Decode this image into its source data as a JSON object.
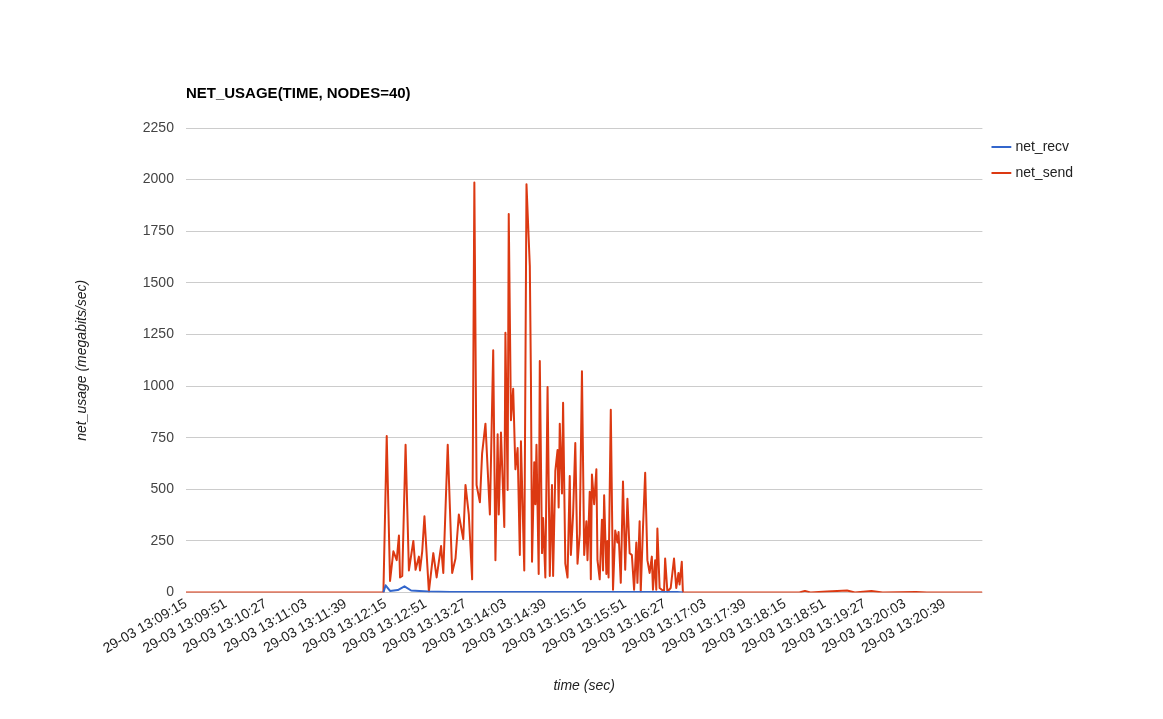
{
  "chart_data": {
    "type": "line",
    "title": "NET_USAGE(TIME, NODES=40)",
    "xlabel": "time (sec)",
    "ylabel": "net_usage (megabits/sec)",
    "xlim": [
      "--03-29T13:09:15",
      "--03-29T13:21:13"
    ],
    "xticks": [
      {
        "value": "--03-29T13:09:15",
        "label": "29-03 13:09:15"
      },
      {
        "value": "--03-29T13:09:51",
        "label": "29-03 13:09:51"
      },
      {
        "value": "--03-29T13:10:27",
        "label": "29-03 13:10:27"
      },
      {
        "value": "--03-29T13:11:03",
        "label": "29-03 13:11:03"
      },
      {
        "value": "--03-29T13:11:39",
        "label": "29-03 13:11:39"
      },
      {
        "value": "--03-29T13:12:15",
        "label": "29-03 13:12:15"
      },
      {
        "value": "--03-29T13:12:51",
        "label": "29-03 13:12:51"
      },
      {
        "value": "--03-29T13:13:27",
        "label": "29-03 13:13:27"
      },
      {
        "value": "--03-29T13:14:03",
        "label": "29-03 13:14:03"
      },
      {
        "value": "--03-29T13:14:39",
        "label": "29-03 13:14:39"
      },
      {
        "value": "--03-29T13:15:15",
        "label": "29-03 13:15:15"
      },
      {
        "value": "--03-29T13:15:51",
        "label": "29-03 13:15:51"
      },
      {
        "value": "--03-29T13:16:27",
        "label": "29-03 13:16:27"
      },
      {
        "value": "--03-29T13:17:03",
        "label": "29-03 13:17:03"
      },
      {
        "value": "--03-29T13:17:39",
        "label": "29-03 13:17:39"
      },
      {
        "value": "--03-29T13:18:15",
        "label": "29-03 13:18:15"
      },
      {
        "value": "--03-29T13:18:51",
        "label": "29-03 13:18:51"
      },
      {
        "value": "--03-29T13:19:27",
        "label": "29-03 13:19:27"
      },
      {
        "value": "--03-29T13:20:03",
        "label": "29-03 13:20:03"
      },
      {
        "value": "--03-29T13:20:39",
        "label": "29-03 13:20:39"
      }
    ],
    "ylim": [
      0,
      2250
    ],
    "yticks": [
      0,
      250,
      500,
      750,
      1000,
      1250,
      1500,
      1750,
      2000,
      2250
    ],
    "grid": "y",
    "legend": "top right",
    "marker": "none",
    "line_style": "solid",
    "series": [
      {
        "name": "net_recv",
        "color": "#3366cc",
        "x": [
          "--03-29T13:12:13",
          "--03-29T13:12:15",
          "--03-29T13:12:19",
          "--03-29T13:12:26",
          "--03-29T13:12:32",
          "--03-29T13:12:38",
          "--03-29T13:12:53",
          "--03-29T13:13:13",
          "--03-29T13:16:38",
          "--03-29T13:16:43"
        ],
        "values": [
          0,
          35,
          8,
          12,
          30,
          10,
          5,
          3,
          3,
          0
        ]
      },
      {
        "name": "net_send",
        "color": "#dc3912",
        "x": [
          "--03-29T13:09:15",
          "--03-29T13:12:13",
          "--03-29T13:12:16",
          "--03-29T13:12:19",
          "--03-29T13:12:22",
          "--03-29T13:12:25",
          "--03-29T13:12:27",
          "--03-29T13:12:28",
          "--03-29T13:12:30",
          "--03-29T13:12:33",
          "--03-29T13:12:36",
          "--03-29T13:12:40",
          "--03-29T13:12:42",
          "--03-29T13:12:45",
          "--03-29T13:12:46",
          "--03-29T13:12:48",
          "--03-29T13:12:50",
          "--03-29T13:12:54",
          "--03-29T13:12:58",
          "--03-29T13:13:01",
          "--03-29T13:13:05",
          "--03-29T13:13:07",
          "--03-29T13:13:11",
          "--03-29T13:13:15",
          "--03-29T13:13:18",
          "--03-29T13:13:21",
          "--03-29T13:13:25",
          "--03-29T13:13:27",
          "--03-29T13:13:30",
          "--03-29T13:13:33",
          "--03-29T13:13:35",
          "--03-29T13:13:37",
          "--03-29T13:13:40",
          "--03-29T13:13:42",
          "--03-29T13:13:45",
          "--03-29T13:13:47",
          "--03-29T13:13:49",
          "--03-29T13:13:52",
          "--03-29T13:13:54",
          "--03-29T13:13:56",
          "--03-29T13:13:57",
          "--03-29T13:13:59",
          "--03-29T13:14:02",
          "--03-29T13:14:03",
          "--03-29T13:14:05",
          "--03-29T13:14:06",
          "--03-29T13:14:08",
          "--03-29T13:14:10",
          "--03-29T13:14:12",
          "--03-29T13:14:14",
          "--03-29T13:14:16",
          "--03-29T13:14:17",
          "--03-29T13:14:20",
          "--03-29T13:14:22",
          "--03-29T13:14:25",
          "--03-29T13:14:26",
          "--03-29T13:14:27",
          "--03-29T13:14:29",
          "--03-29T13:14:30",
          "--03-29T13:14:31",
          "--03-29T13:14:33",
          "--03-29T13:14:34",
          "--03-29T13:14:36",
          "--03-29T13:14:37",
          "--03-29T13:14:39",
          "--03-29T13:14:41",
          "--03-29T13:14:43",
          "--03-29T13:14:45",
          "--03-29T13:14:46",
          "--03-29T13:14:48",
          "--03-29T13:14:50",
          "--03-29T13:14:51",
          "--03-29T13:14:52",
          "--03-29T13:14:54",
          "--03-29T13:14:55",
          "--03-29T13:14:57",
          "--03-29T13:14:59",
          "--03-29T13:15:01",
          "--03-29T13:15:02",
          "--03-29T13:15:04",
          "--03-29T13:15:06",
          "--03-29T13:15:08",
          "--03-29T13:15:10",
          "--03-29T13:15:12",
          "--03-29T13:15:14",
          "--03-29T13:15:16",
          "--03-29T13:15:17",
          "--03-29T13:15:19",
          "--03-29T13:15:20",
          "--03-29T13:15:21",
          "--03-29T13:15:23",
          "--03-29T13:15:25",
          "--03-29T13:15:26",
          "--03-29T13:15:28",
          "--03-29T13:15:30",
          "--03-29T13:15:31",
          "--03-29T13:15:32",
          "--03-29T13:15:34",
          "--03-29T13:15:35",
          "--03-29T13:15:36",
          "--03-29T13:15:38",
          "--03-29T13:15:40",
          "--03-29T13:15:42",
          "--03-29T13:15:44",
          "--03-29T13:15:45",
          "--03-29T13:15:47",
          "--03-29T13:15:49",
          "--03-29T13:15:51",
          "--03-29T13:15:53",
          "--03-29T13:15:55",
          "--03-29T13:15:57",
          "--03-29T13:15:59",
          "--03-29T13:16:01",
          "--03-29T13:16:02",
          "--03-29T13:16:04",
          "--03-29T13:16:05",
          "--03-29T13:16:07",
          "--03-29T13:16:09",
          "--03-29T13:16:11",
          "--03-29T13:16:13",
          "--03-29T13:16:15",
          "--03-29T13:16:16",
          "--03-29T13:16:18",
          "--03-29T13:16:19",
          "--03-29T13:16:20",
          "--03-29T13:16:22",
          "--03-29T13:16:26",
          "--03-29T13:16:27",
          "--03-29T13:16:29",
          "--03-29T13:16:32",
          "--03-29T13:16:35",
          "--03-29T13:16:37",
          "--03-29T13:16:39",
          "--03-29T13:16:40",
          "--03-29T13:16:42",
          "--03-29T13:16:43",
          "--03-29T13:18:28",
          "--03-29T13:18:33",
          "--03-29T13:18:38",
          "--03-29T13:18:53",
          "--03-29T13:19:11",
          "--03-29T13:19:18",
          "--03-29T13:19:33",
          "--03-29T13:19:43",
          "--03-29T13:20:13",
          "--03-29T13:20:23",
          "--03-29T13:21:13"
        ],
        "values": [
          0,
          0,
          758,
          56,
          200,
          157,
          276,
          73,
          80,
          716,
          107,
          250,
          110,
          174,
          107,
          200,
          369,
          5,
          191,
          73,
          225,
          95,
          716,
          95,
          165,
          378,
          259,
          521,
          378,
          64,
          1986,
          521,
          437,
          674,
          818,
          597,
          378,
          1173,
          157,
          767,
          378,
          775,
          318,
          1258,
          497,
          1834,
          835,
          987,
          597,
          700,
          182,
          733,
          107,
          1977,
          1580,
          1038,
          149,
          631,
          428,
          716,
          90,
          1122,
          191,
          361,
          73,
          995,
          80,
          521,
          80,
          589,
          690,
          412,
          818,
          480,
          919,
          140,
          73,
          564,
          182,
          378,
          724,
          140,
          284,
          1072,
          182,
          345,
          157,
          488,
          64,
          572,
          428,
          597,
          157,
          64,
          353,
          107,
          471,
          90,
          250,
          73,
          885,
          14,
          301,
          242,
          293,
          47,
          538,
          110,
          454,
          191,
          182,
          14,
          242,
          47,
          345,
          5,
          310,
          580,
          157,
          95,
          174,
          14,
          157,
          14,
          310,
          22,
          5,
          165,
          5,
          22,
          165,
          22,
          95,
          39,
          149,
          0,
          0,
          8,
          0,
          5,
          10,
          0,
          8,
          0,
          3,
          0,
          0
        ]
      }
    ]
  }
}
